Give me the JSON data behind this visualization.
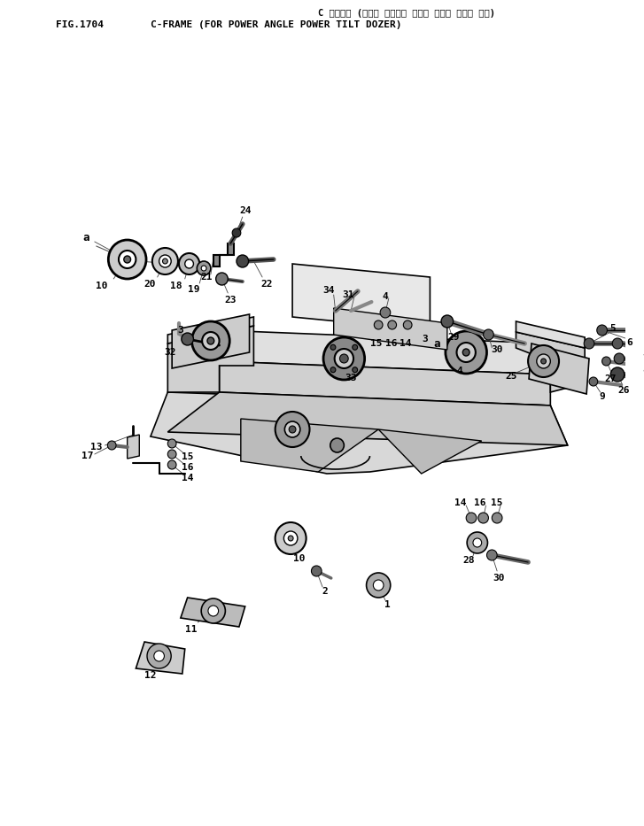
{
  "title_japanese": "C フレーム (パワー アングル パワー チルト ドーザ ヨウ)",
  "title_fig": "FIG.1704",
  "title_english": "C-FRAME (FOR POWER ANGLE POWER TILT DOZER)",
  "bg_color": "#ffffff",
  "line_color": "#000000",
  "text_color": "#000000",
  "fig_width": 7.27,
  "fig_height": 9.33,
  "dpi": 100
}
